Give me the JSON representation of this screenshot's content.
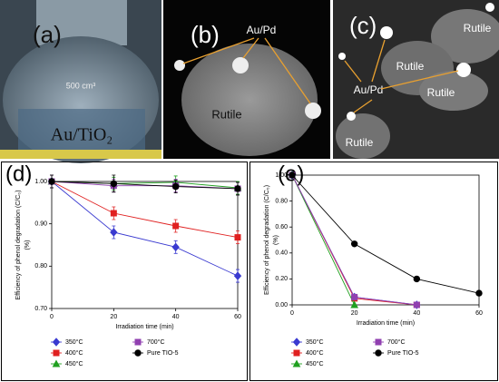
{
  "panels": [
    {
      "label": "(a)",
      "texts": [
        "500 cm³",
        "Au/TiO₂"
      ]
    },
    {
      "label": "(b)",
      "texts": [
        "Au/Pd",
        "Rutile"
      ]
    },
    {
      "label": "(c)",
      "texts": [
        "Rutile",
        "Rutile",
        "Rutile",
        "Au/Pd",
        "Rutile"
      ]
    }
  ],
  "chart_data": [
    {
      "type": "line",
      "title": "(d)",
      "x_label": "Irradiation time (min)",
      "y_label": "Efficiency of phenol degradation (C/C₀)",
      "y_unit": "(%)",
      "x": [
        0,
        20,
        40,
        60
      ],
      "xlim": [
        0,
        60
      ],
      "xticks": [
        0,
        20,
        40,
        60
      ],
      "ylim": [
        0.7,
        1.0
      ],
      "yticks": [
        {
          "value": 0.7,
          "label": "0.70"
        },
        {
          "value": 0.8,
          "label": "0.80"
        },
        {
          "value": 0.9,
          "label": "0.90"
        },
        {
          "value": 1.0,
          "label": "1.00"
        }
      ],
      "series": [
        {
          "name": "350°C",
          "color": "#3a3ad0",
          "marker": "diamond",
          "values": [
            1.0,
            0.88,
            0.845,
            0.777
          ],
          "errors": [
            0.015,
            0.015,
            0.015,
            0.015
          ]
        },
        {
          "name": "400°C",
          "color": "#e02020",
          "marker": "square",
          "values": [
            1.0,
            0.925,
            0.895,
            0.868
          ],
          "errors": [
            0.015,
            0.015,
            0.015,
            0.015
          ]
        },
        {
          "name": "450°C",
          "color": "#20a020",
          "marker": "triangle",
          "values": [
            1.0,
            0.995,
            0.998,
            0.985
          ],
          "errors": [
            0.015,
            0.015,
            0.015,
            0.015
          ]
        },
        {
          "name": "700°C",
          "color": "#9040b0",
          "marker": "square",
          "values": [
            1.0,
            0.99,
            0.99,
            0.983
          ],
          "errors": [
            0.015,
            0.015,
            0.015,
            0.015
          ]
        },
        {
          "name": "Pure TIO-5",
          "color": "#000000",
          "marker": "circle",
          "values": [
            1.0,
            0.995,
            0.988,
            0.983
          ],
          "errors": [
            0.015,
            0.02,
            0.015,
            0.015
          ]
        }
      ]
    },
    {
      "type": "line",
      "title": "(e)",
      "x_label": "Irradiation time (min)",
      "y_label": "Efficiency of phenol degradation (C/C₀)",
      "y_unit": "(%)",
      "x": [
        0,
        20,
        40,
        60
      ],
      "xlim": [
        0,
        60
      ],
      "xticks": [
        0,
        20,
        40,
        60
      ],
      "ylim": [
        0,
        1.0
      ],
      "yticks": [
        {
          "value": 0,
          "label": "0.00"
        },
        {
          "value": 0.2,
          "label": "0.20"
        },
        {
          "value": 0.4,
          "label": "0.40"
        },
        {
          "value": 0.6,
          "label": "0.60"
        },
        {
          "value": 0.8,
          "label": "0.80"
        },
        {
          "value": 1.0,
          "label": "1.00"
        }
      ],
      "series": [
        {
          "name": "350°C",
          "color": "#3a3ad0",
          "marker": "diamond",
          "values": [
            1.0,
            0.06,
            0,
            null
          ]
        },
        {
          "name": "400°C",
          "color": "#e02020",
          "marker": "square",
          "values": [
            1.0,
            0.05,
            0,
            null
          ]
        },
        {
          "name": "450°C",
          "color": "#20a020",
          "marker": "triangle",
          "values": [
            1.0,
            0,
            null,
            null
          ]
        },
        {
          "name": "700°C",
          "color": "#9040b0",
          "marker": "square",
          "values": [
            1.0,
            0.06,
            0,
            null
          ]
        },
        {
          "name": "Pure TIO-5",
          "color": "#000000",
          "marker": "circle",
          "values": [
            1.0,
            0.47,
            0.2,
            0.09
          ]
        }
      ]
    }
  ]
}
